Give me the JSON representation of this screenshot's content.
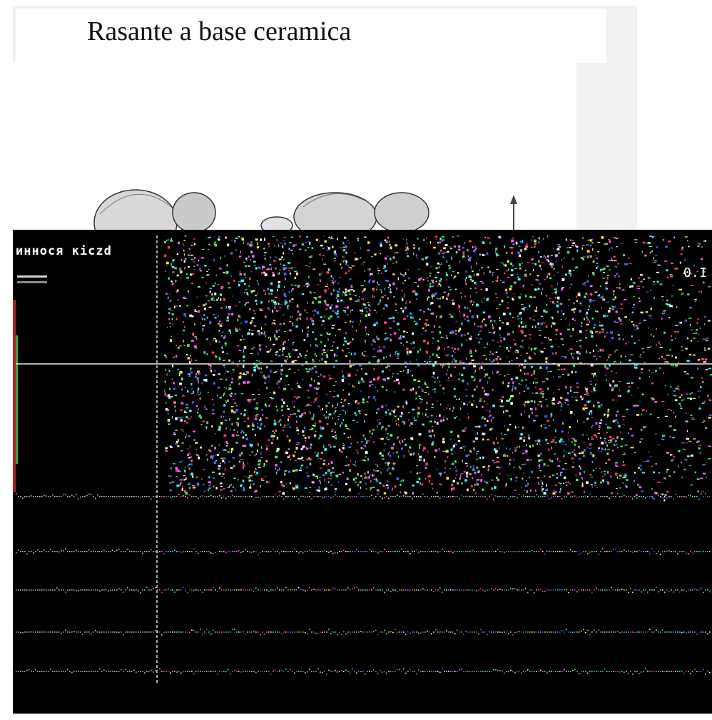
{
  "figure": {
    "title": "Rasante a base ceramica",
    "header_label": "иннося кісzd",
    "side_value": "0.1"
  },
  "colors": {
    "background": "#ffffff",
    "panel": "#000000",
    "noise": [
      "#ffffff",
      "#ff3d5a",
      "#39ff6a",
      "#3f6bff",
      "#ffe14d",
      "#ff59ff",
      "#47f3ff",
      "#9a9a9a"
    ]
  }
}
